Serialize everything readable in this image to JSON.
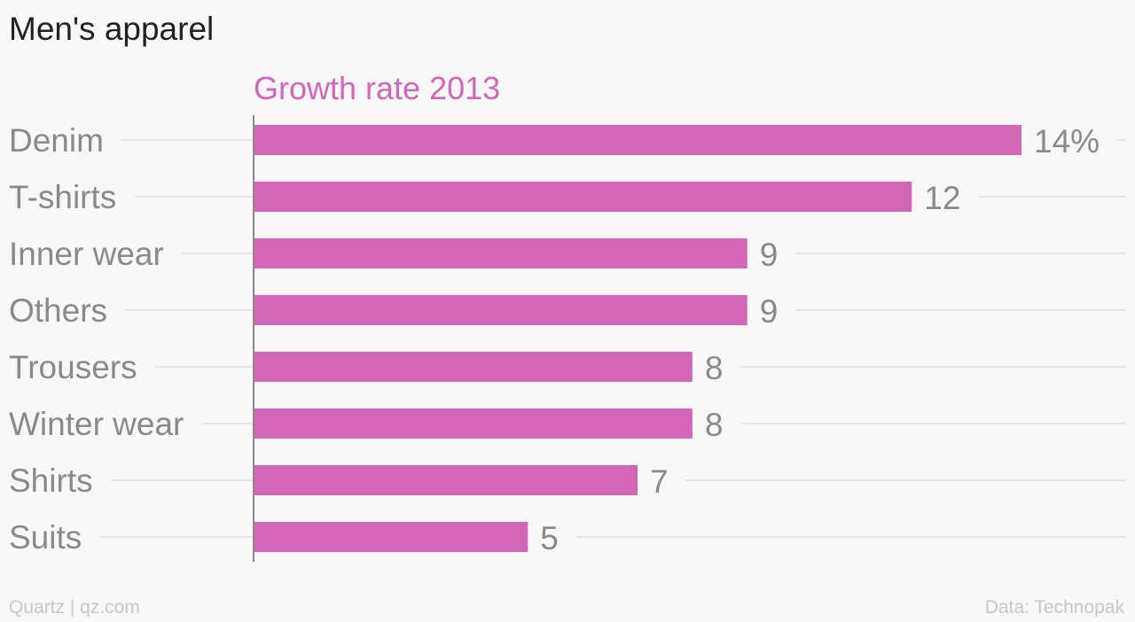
{
  "title": "Men's apparel",
  "chart_data": {
    "type": "bar",
    "orientation": "horizontal",
    "series_label": "Growth rate 2013",
    "categories": [
      "Denim",
      "T-shirts",
      "Inner wear",
      "Others",
      "Trousers",
      "Winter wear",
      "Shirts",
      "Suits"
    ],
    "values": [
      14,
      12,
      9,
      9,
      8,
      8,
      7,
      5
    ],
    "value_labels": [
      "14%",
      "12",
      "9",
      "9",
      "8",
      "8",
      "7",
      "5"
    ],
    "xlim": [
      0,
      14
    ],
    "grid": true
  },
  "colors": {
    "bar": "#d465b9",
    "series_label": "#d465b9",
    "category_text": "#8a8a8a",
    "value_text": "#8a8a8a",
    "gridline": "#e6e6e6",
    "axis": "#8a8a8a",
    "title": "#222222",
    "footer": "#c8c8c8"
  },
  "footer": {
    "credit": "Quartz | qz.com",
    "source": "Data: Technopak"
  }
}
